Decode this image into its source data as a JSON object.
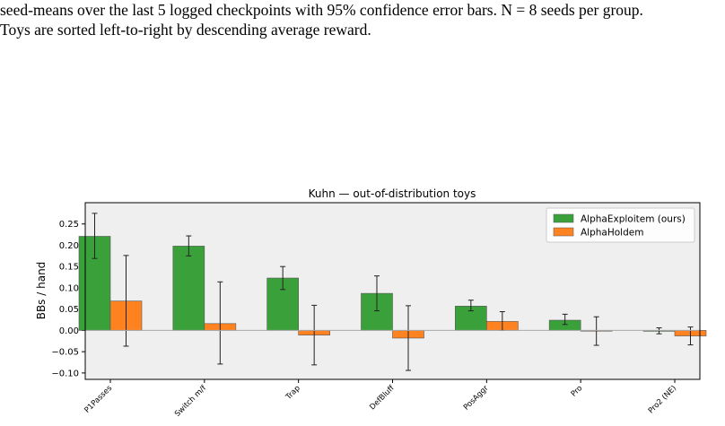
{
  "caption": {
    "line1": "seed-means over the last 5 logged checkpoints with 95% confidence error bars. N = 8 seeds per group.",
    "line2": "Toys are sorted left-to-right by descending average reward."
  },
  "chart_data": {
    "type": "bar",
    "title": "Kuhn — out-of-distribution toys",
    "xlabel": "",
    "ylabel": "BBs / hand",
    "categories": [
      "P1Passes",
      "Switch m/f",
      "Trap",
      "DefBluff",
      "PosAggr",
      "Pro",
      "Pro2 (NE)"
    ],
    "series": [
      {
        "name": "AlphaExploitem (ours)",
        "color": "#3aa13a",
        "values": [
          0.221,
          0.198,
          0.123,
          0.087,
          0.057,
          0.024,
          -0.002
        ],
        "err_low": [
          0.169,
          0.175,
          0.096,
          0.046,
          0.046,
          0.014,
          -0.008
        ],
        "err_high": [
          0.275,
          0.222,
          0.15,
          0.128,
          0.071,
          0.038,
          0.006
        ]
      },
      {
        "name": "AlphaHoldem",
        "color": "#ff8220",
        "values": [
          0.069,
          0.016,
          -0.011,
          -0.018,
          0.021,
          -0.001,
          -0.013
        ],
        "err_low": [
          -0.037,
          -0.079,
          -0.081,
          -0.094,
          0.0,
          -0.035,
          -0.034
        ],
        "err_high": [
          0.176,
          0.114,
          0.059,
          0.058,
          0.044,
          0.032,
          0.008
        ]
      }
    ],
    "ylim": [
      -0.115,
      0.3
    ],
    "yticks": [
      -0.1,
      -0.05,
      0.0,
      0.05,
      0.1,
      0.15,
      0.2,
      0.25
    ],
    "ytick_labels": [
      "−0.10",
      "−0.05",
      "0.00",
      "0.05",
      "0.10",
      "0.15",
      "0.20",
      "0.25"
    ],
    "grid": false,
    "zero_line": true,
    "legend_position": "top-right",
    "plot_background": "#efefef"
  }
}
